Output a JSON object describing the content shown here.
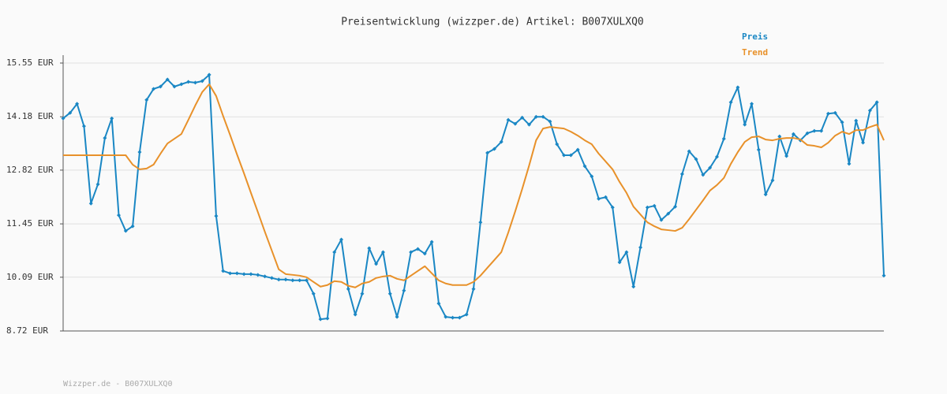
{
  "chart_data": {
    "type": "line",
    "title": "Preisentwicklung (wizzper.de) Artikel: B007XULXQ0",
    "footer": "Wizzper.de - B007XULXQ0",
    "ylim": [
      8.72,
      15.55
    ],
    "yticks": [
      {
        "value": 8.72,
        "label": "8.72 EUR"
      },
      {
        "value": 10.09,
        "label": "10.09 EUR"
      },
      {
        "value": 11.45,
        "label": "11.45 EUR"
      },
      {
        "value": 12.82,
        "label": "12.82 EUR"
      },
      {
        "value": 14.18,
        "label": "14.18 EUR"
      },
      {
        "value": 15.55,
        "label": "15.55 EUR"
      }
    ],
    "grid": true,
    "legend": "top-right",
    "series": [
      {
        "name": "Preis",
        "color": "#1a87c4",
        "markers": true,
        "values": [
          14.14,
          14.28,
          14.51,
          13.94,
          11.97,
          12.46,
          13.64,
          14.14,
          11.67,
          11.27,
          11.39,
          13.28,
          14.61,
          14.89,
          14.95,
          15.13,
          14.95,
          15.01,
          15.07,
          15.05,
          15.09,
          15.25,
          11.65,
          10.25,
          10.19,
          10.19,
          10.17,
          10.17,
          10.15,
          10.11,
          10.07,
          10.03,
          10.03,
          10.01,
          10.01,
          10.01,
          9.67,
          9.02,
          9.04,
          10.73,
          11.05,
          9.79,
          9.14,
          9.67,
          10.83,
          10.43,
          10.73,
          9.67,
          9.08,
          9.75,
          10.73,
          10.81,
          10.69,
          10.99,
          9.42,
          9.08,
          9.06,
          9.06,
          9.14,
          9.79,
          11.49,
          13.26,
          13.36,
          13.54,
          14.1,
          14.0,
          14.16,
          13.98,
          14.18,
          14.18,
          14.06,
          13.48,
          13.2,
          13.2,
          13.34,
          12.92,
          12.66,
          12.09,
          12.13,
          11.87,
          10.47,
          10.73,
          9.85,
          10.85,
          11.87,
          11.91,
          11.55,
          11.71,
          11.89,
          12.72,
          13.3,
          13.1,
          12.7,
          12.88,
          13.16,
          13.62,
          14.55,
          14.93,
          13.98,
          14.51,
          13.34,
          12.2,
          12.56,
          13.68,
          13.18,
          13.74,
          13.58,
          13.76,
          13.82,
          13.82,
          14.26,
          14.28,
          14.04,
          12.98,
          14.08,
          13.52,
          14.34,
          14.55,
          10.13
        ]
      },
      {
        "name": "Trend",
        "color": "#e8912a",
        "markers": false,
        "values": [
          13.2,
          13.2,
          13.2,
          13.2,
          13.2,
          13.2,
          13.2,
          13.2,
          13.2,
          13.2,
          12.96,
          12.84,
          12.86,
          12.96,
          13.24,
          13.5,
          13.62,
          13.74,
          14.1,
          14.47,
          14.81,
          15.01,
          14.71,
          14.2,
          13.72,
          13.22,
          12.74,
          12.24,
          11.75,
          11.25,
          10.77,
          10.29,
          10.17,
          10.15,
          10.13,
          10.09,
          9.97,
          9.85,
          9.89,
          9.99,
          9.97,
          9.87,
          9.83,
          9.93,
          9.97,
          10.07,
          10.11,
          10.13,
          10.05,
          10.01,
          10.13,
          10.25,
          10.37,
          10.19,
          10.01,
          9.93,
          9.89,
          9.89,
          9.89,
          9.97,
          10.13,
          10.33,
          10.53,
          10.73,
          11.23,
          11.77,
          12.34,
          12.94,
          13.58,
          13.88,
          13.92,
          13.9,
          13.88,
          13.8,
          13.7,
          13.58,
          13.48,
          13.24,
          13.04,
          12.84,
          12.52,
          12.24,
          11.89,
          11.69,
          11.49,
          11.39,
          11.31,
          11.29,
          11.27,
          11.35,
          11.57,
          11.81,
          12.05,
          12.3,
          12.44,
          12.62,
          12.98,
          13.28,
          13.54,
          13.66,
          13.68,
          13.6,
          13.58,
          13.62,
          13.64,
          13.64,
          13.6,
          13.46,
          13.44,
          13.4,
          13.52,
          13.7,
          13.8,
          13.74,
          13.84,
          13.84,
          13.92,
          13.98,
          13.58
        ]
      }
    ]
  }
}
